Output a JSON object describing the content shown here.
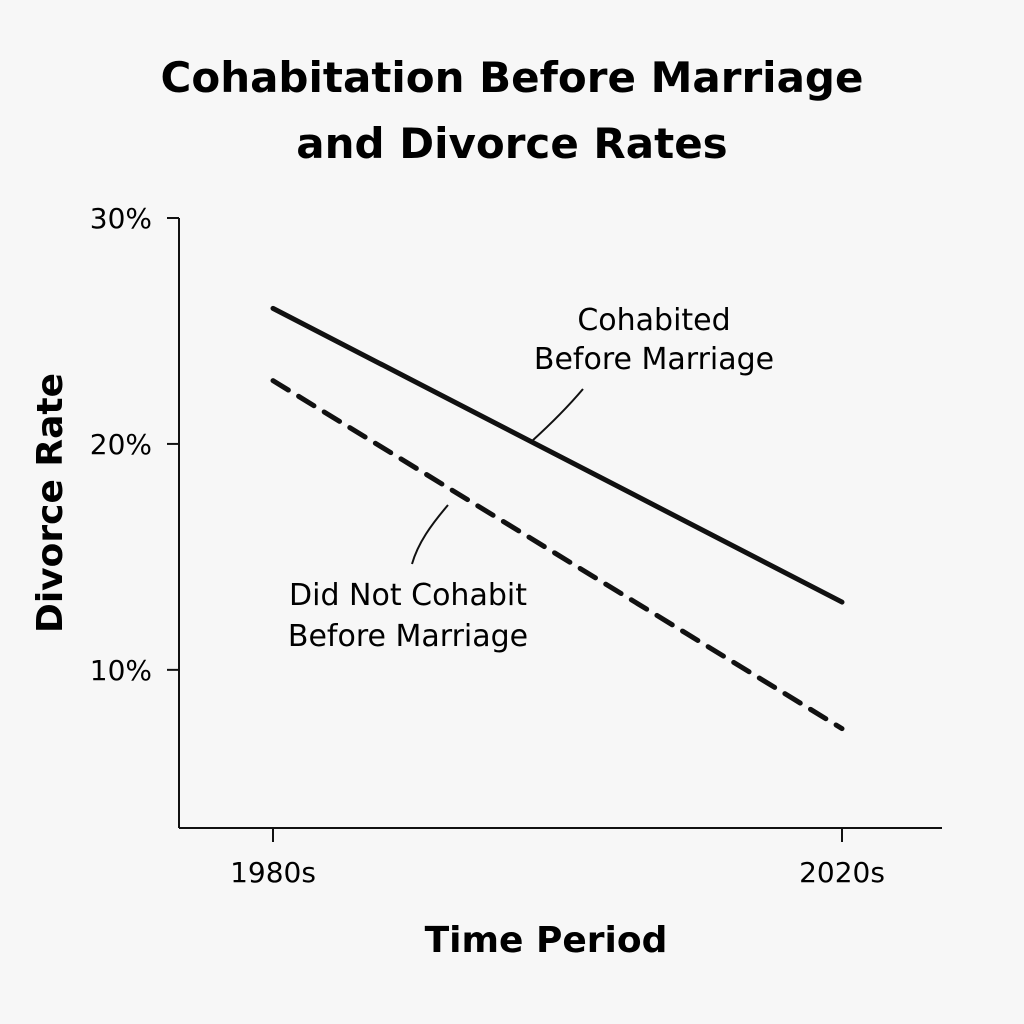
{
  "chart_data": {
    "type": "line",
    "title": [
      "Cohabitation Before Marriage",
      "and Divorce Rates"
    ],
    "xlabel": "Time Period",
    "ylabel": "Divorce Rate",
    "categories": [
      "1980s",
      "2020s"
    ],
    "ylim": [
      3,
      30
    ],
    "yticks": [
      {
        "value": 10,
        "label": "10%"
      },
      {
        "value": 20,
        "label": "20%"
      },
      {
        "value": 30,
        "label": "30%"
      }
    ],
    "grid": false,
    "legend": "none",
    "series": [
      {
        "name": "Cohabited Before Marriage",
        "label_lines": [
          "Cohabited",
          "Before Marriage"
        ],
        "values": [
          26,
          13
        ],
        "line_style": "solid",
        "color": "#111111"
      },
      {
        "name": "Did Not Cohabit Before Marriage",
        "label_lines": [
          "Did Not Cohabit",
          "Before Marriage"
        ],
        "values": [
          22.8,
          7.4
        ],
        "line_style": "dashed",
        "color": "#111111"
      }
    ]
  }
}
